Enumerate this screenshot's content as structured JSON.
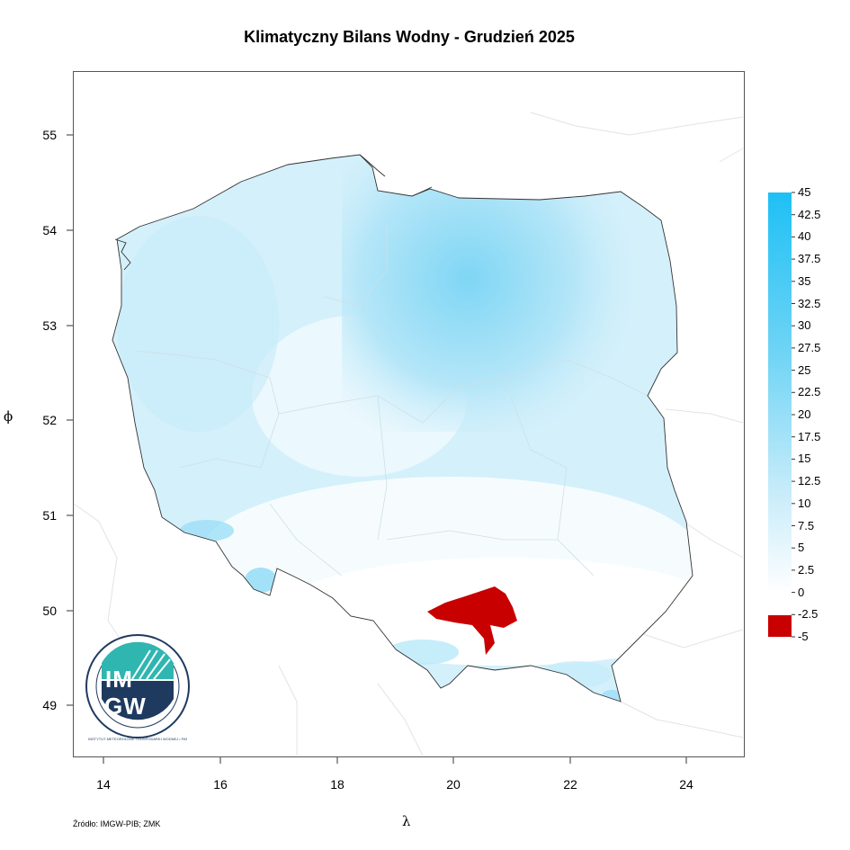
{
  "title": "Klimatyczny Bilans Wodny - Grudzień 2025",
  "axes": {
    "xlabel": "λ",
    "ylabel": "ϕ",
    "xticks": [
      "14",
      "16",
      "18",
      "20",
      "22",
      "24"
    ],
    "yticks": [
      "55",
      "54",
      "53",
      "52",
      "51",
      "50",
      "49"
    ]
  },
  "colorbar": {
    "labels": [
      "45",
      "42.5",
      "40",
      "37.5",
      "35",
      "32.5",
      "30",
      "27.5",
      "25",
      "22.5",
      "20",
      "17.5",
      "15",
      "12.5",
      "10",
      "7.5",
      "5",
      "2.5",
      "0",
      "-2.5",
      "-5"
    ],
    "colors": {
      "high": "#1ec0f5",
      "low_positive": "#f4fbfe",
      "zero": "#ffffff",
      "negative": "#c80000"
    }
  },
  "source": "Źródło: IMGW-PIB; ZMK",
  "logo": {
    "text_top": "IM",
    "text_bottom": "GW",
    "ring_text": "INSTYTUT METEOROLOGII I GOSPODARKI WODNEJ • PAŃSTWOWY INSTYTUT BADAWCZY",
    "teal": "#2fb6b0",
    "navy": "#1e3a5f"
  }
}
